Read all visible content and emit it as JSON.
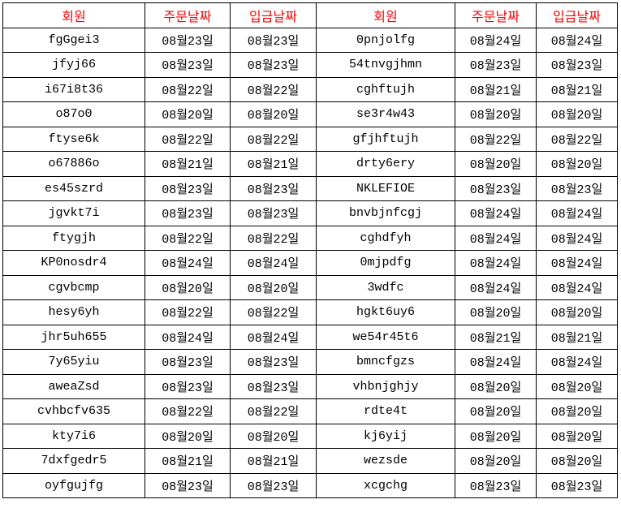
{
  "header": [
    "회원",
    "주문날짜",
    "입금날짜",
    "회원",
    "주문날짜",
    "입금날짜"
  ],
  "header_color": "#ff0000",
  "rows": [
    [
      "fgGgei3",
      "08월23일",
      "08월23일",
      "0pnjolfg",
      "08월24일",
      "08월24일"
    ],
    [
      "jfyj66",
      "08월23일",
      "08월23일",
      "54tnvgjhmn",
      "08월23일",
      "08월23일"
    ],
    [
      "i67i8t36",
      "08월22일",
      "08월22일",
      "cghftujh",
      "08월21일",
      "08월21일"
    ],
    [
      "o87o0",
      "08월20일",
      "08월20일",
      "se3r4w43",
      "08월20일",
      "08월20일"
    ],
    [
      "ftyse6k",
      "08월22일",
      "08월22일",
      "gfjhftujh",
      "08월22일",
      "08월22일"
    ],
    [
      "o67886o",
      "08월21일",
      "08월21일",
      "drty6ery",
      "08월20일",
      "08월20일"
    ],
    [
      "es45szrd",
      "08월23일",
      "08월23일",
      "NKLEFIOE",
      "08월23일",
      "08월23일"
    ],
    [
      "jgvkt7i",
      "08월23일",
      "08월23일",
      "bnvbjnfcgj",
      "08월24일",
      "08월24일"
    ],
    [
      "ftygjh",
      "08월22일",
      "08월22일",
      "cghdfyh",
      "08월24일",
      "08월24일"
    ],
    [
      "KP0nosdr4",
      "08월24일",
      "08월24일",
      "0mjpdfg",
      "08월24일",
      "08월24일"
    ],
    [
      "cgvbcmp",
      "08월20일",
      "08월20일",
      "3wdfc",
      "08월24일",
      "08월24일"
    ],
    [
      "hesy6yh",
      "08월22일",
      "08월22일",
      "hgkt6uy6",
      "08월20일",
      "08월20일"
    ],
    [
      "jhr5uh655",
      "08월24일",
      "08월24일",
      "we54r45t6",
      "08월21일",
      "08월21일"
    ],
    [
      "7y65yiu",
      "08월23일",
      "08월23일",
      "bmncfgzs",
      "08월24일",
      "08월24일"
    ],
    [
      "aweaZsd",
      "08월23일",
      "08월23일",
      "vhbnjghjy",
      "08월20일",
      "08월20일"
    ],
    [
      "cvhbcfv635",
      "08월22일",
      "08월22일",
      "rdte4t",
      "08월20일",
      "08월20일"
    ],
    [
      "kty7i6",
      "08월20일",
      "08월20일",
      "kj6yij",
      "08월20일",
      "08월20일"
    ],
    [
      "7dxfgedr5",
      "08월21일",
      "08월21일",
      "wezsde",
      "08월20일",
      "08월20일"
    ],
    [
      "oyfgujfg",
      "08월23일",
      "08월23일",
      "xcgchg",
      "08월23일",
      "08월23일"
    ]
  ]
}
